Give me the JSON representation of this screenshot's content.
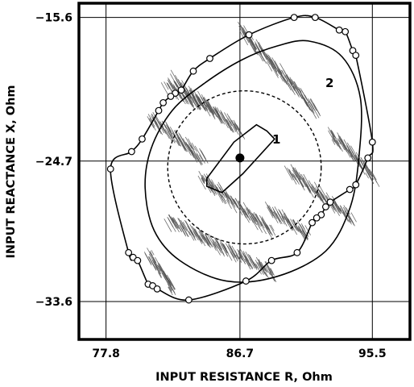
{
  "chart_data": {
    "type": "scatter",
    "title": "",
    "xlabel": "INPUT RESISTANCE  R, Ohm",
    "ylabel": "INPUT REACTANCE  X, Ohm",
    "xlim": [
      76.0,
      98.0
    ],
    "ylim": [
      -36.0,
      -14.7
    ],
    "xticks": [
      77.8,
      86.7,
      95.5
    ],
    "xtick_labels": [
      "77.8",
      "86.7",
      "95.5"
    ],
    "yticks": [
      -15.6,
      -24.7,
      -33.6
    ],
    "ytick_labels": [
      "−15.6",
      "−24.7",
      "−33.6"
    ],
    "grid": true,
    "legend": "none",
    "colors": {
      "ink": "#000000",
      "cloud": "#555555",
      "marker_fill": "#ffffff"
    },
    "center_point": {
      "x": 86.7,
      "y": -24.5
    },
    "region_1": {
      "label": "1",
      "polygon": [
        [
          88.5,
          -22.8
        ],
        [
          87.8,
          -22.4
        ],
        [
          86.3,
          -23.5
        ],
        [
          84.5,
          -25.8
        ],
        [
          84.5,
          -26.3
        ],
        [
          85.5,
          -26.7
        ],
        [
          86.9,
          -25.5
        ],
        [
          89.0,
          -23.3
        ]
      ]
    },
    "dashed_ellipse": {
      "cx": 87.0,
      "cy": -25.1,
      "rx": 5.1,
      "ry": 4.85
    },
    "contour_2": {
      "label": "2",
      "points": [
        [
          91.3,
          -17.1
        ],
        [
          89.2,
          -17.4
        ],
        [
          86.8,
          -18.3
        ],
        [
          84.3,
          -19.8
        ],
        [
          82.2,
          -21.5
        ],
        [
          80.8,
          -23.9
        ],
        [
          80.4,
          -26.4
        ],
        [
          81.0,
          -29.1
        ],
        [
          82.7,
          -31.0
        ],
        [
          85.8,
          -32.3
        ],
        [
          89.2,
          -32.0
        ],
        [
          92.4,
          -30.4
        ],
        [
          94.0,
          -27.7
        ],
        [
          94.6,
          -24.5
        ],
        [
          94.7,
          -20.7
        ],
        [
          93.5,
          -18.1
        ]
      ]
    },
    "outer_contour_markers": [
      [
        91.7,
        -15.6
      ],
      [
        90.3,
        -15.6
      ],
      [
        93.3,
        -16.4
      ],
      [
        93.7,
        -16.5
      ],
      [
        94.2,
        -17.7
      ],
      [
        94.4,
        -18.0
      ],
      [
        87.3,
        -16.7
      ],
      [
        84.7,
        -18.2
      ],
      [
        83.6,
        -19.0
      ],
      [
        82.8,
        -20.2
      ],
      [
        82.4,
        -20.4
      ],
      [
        82.1,
        -20.6
      ],
      [
        81.6,
        -21.0
      ],
      [
        81.3,
        -21.5
      ],
      [
        80.2,
        -23.3
      ],
      [
        79.5,
        -24.1
      ],
      [
        78.1,
        -25.2
      ],
      [
        95.5,
        -23.5
      ],
      [
        95.2,
        -24.5
      ],
      [
        94.4,
        -26.2
      ],
      [
        94.0,
        -26.5
      ],
      [
        92.7,
        -27.3
      ],
      [
        92.4,
        -27.6
      ],
      [
        92.1,
        -28.1
      ],
      [
        91.8,
        -28.3
      ],
      [
        91.5,
        -28.6
      ],
      [
        79.3,
        -30.5
      ],
      [
        79.6,
        -30.8
      ],
      [
        79.9,
        -31.0
      ],
      [
        80.6,
        -32.5
      ],
      [
        80.9,
        -32.6
      ],
      [
        81.2,
        -32.8
      ],
      [
        90.5,
        -30.5
      ],
      [
        88.8,
        -31.0
      ],
      [
        87.1,
        -32.3
      ],
      [
        83.3,
        -33.5
      ]
    ],
    "clusters": [
      {
        "x": [
          86.8,
          91.8
        ],
        "y": [
          -16.4,
          -21.6
        ]
      },
      {
        "x": [
          82.3,
          86.7
        ],
        "y": [
          -19.6,
          -22.8
        ]
      },
      {
        "x": [
          80.8,
          84.3
        ],
        "y": [
          -22.0,
          -24.6
        ]
      },
      {
        "x": [
          81.8,
          84.5
        ],
        "y": [
          -19.9,
          -21.4
        ]
      },
      {
        "x": [
          84.2,
          88.8
        ],
        "y": [
          -25.8,
          -29.2
        ]
      },
      {
        "x": [
          90.0,
          94.2
        ],
        "y": [
          -25.3,
          -28.4
        ]
      },
      {
        "x": [
          92.8,
          95.6
        ],
        "y": [
          -23.0,
          -25.7
        ]
      },
      {
        "x": [
          82.0,
          89.0
        ],
        "y": [
          -28.5,
          -31.9
        ]
      },
      {
        "x": [
          80.7,
          82.3
        ],
        "y": [
          -30.6,
          -32.9
        ]
      },
      {
        "x": [
          88.7,
          91.2
        ],
        "y": [
          -27.8,
          -29.3
        ]
      }
    ]
  }
}
